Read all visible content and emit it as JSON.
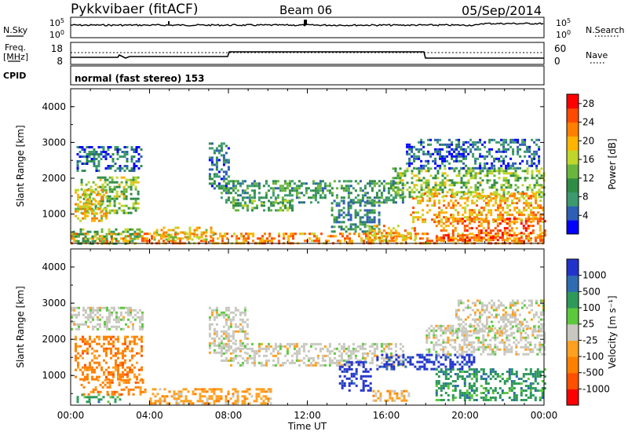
{
  "header": {
    "title": "Pykkvibaer (fitACF)",
    "beam": "Beam 06",
    "date": "05/Sep/2014"
  },
  "params": {
    "nsky_label": "N.Sky",
    "nsearch_label": "N.Search",
    "freq_label_1": "Freq.",
    "freq_label_2": "[MHz]",
    "nave_label": "Nave",
    "cpid_label": "CPID",
    "cpid_text": "normal (fast stereo) 153",
    "noise_ticks_left": [
      "10^5",
      "10^0"
    ],
    "noise_ticks_right": [
      "10^5",
      "10^0"
    ],
    "freq_ticks_left": [
      "18",
      "8"
    ],
    "nave_ticks_right": [
      "60",
      "0"
    ]
  },
  "chart_data": [
    {
      "type": "heatmap",
      "panel": "power",
      "xlabel": "",
      "ylabel": "Slant Range [km]",
      "xlim": [
        0,
        24
      ],
      "ylim": [
        180,
        4500
      ],
      "yticks": [
        "1000",
        "2000",
        "3000",
        "4000"
      ],
      "colorbar": {
        "label": "Power [dB]",
        "ticks": [
          "4",
          "8",
          "12",
          "16",
          "20",
          "24",
          "28"
        ],
        "range": [
          0,
          30
        ],
        "colors": [
          "#0000ff",
          "#2d5fb4",
          "#3c9a6e",
          "#2f8c44",
          "#6ab63c",
          "#bfd62a",
          "#ffb400",
          "#ff8000",
          "#ff4a00",
          "#ff0000"
        ]
      },
      "echo_regions": [
        {
          "x": [
            0.0,
            24.0
          ],
          "y": [
            180,
            480
          ],
          "level": 22
        },
        {
          "x": [
            0.1,
            3.6
          ],
          "y": [
            200,
            600
          ],
          "level": 12
        },
        {
          "x": [
            0.5,
            3.4
          ],
          "y": [
            1050,
            2050
          ],
          "level": 14
        },
        {
          "x": [
            0.2,
            1.8
          ],
          "y": [
            800,
            1700
          ],
          "level": 18
        },
        {
          "x": [
            0.3,
            3.6
          ],
          "y": [
            2200,
            2900
          ],
          "level": 6
        },
        {
          "x": [
            4.2,
            7.3
          ],
          "y": [
            300,
            650
          ],
          "level": 18
        },
        {
          "x": [
            7.0,
            8.0
          ],
          "y": [
            1700,
            3000
          ],
          "level": 7
        },
        {
          "x": [
            7.6,
            16.8
          ],
          "y": [
            1350,
            1950
          ],
          "level": 10
        },
        {
          "x": [
            8.2,
            11.2
          ],
          "y": [
            1100,
            1400
          ],
          "level": 12
        },
        {
          "x": [
            13.2,
            15.6
          ],
          "y": [
            500,
            1400
          ],
          "level": 8
        },
        {
          "x": [
            15.0,
            17.4
          ],
          "y": [
            300,
            700
          ],
          "level": 20
        },
        {
          "x": [
            16.3,
            24.0
          ],
          "y": [
            1500,
            2300
          ],
          "level": 14
        },
        {
          "x": [
            17.2,
            24.0
          ],
          "y": [
            800,
            1600
          ],
          "level": 20
        },
        {
          "x": [
            18.5,
            24.0
          ],
          "y": [
            250,
            900
          ],
          "level": 24
        },
        {
          "x": [
            17.0,
            23.8
          ],
          "y": [
            2300,
            3100
          ],
          "level": 5
        }
      ]
    },
    {
      "type": "heatmap",
      "panel": "velocity",
      "xlabel": "Time UT",
      "ylabel": "Slant Range [km]",
      "xlim": [
        0,
        24
      ],
      "ylim": [
        180,
        4500
      ],
      "xticks": [
        "00:00",
        "04:00",
        "08:00",
        "12:00",
        "16:00",
        "20:00",
        "00:00"
      ],
      "yticks": [
        "1000",
        "2000",
        "3000",
        "4000"
      ],
      "colorbar": {
        "label": "Velocity [m s⁻¹]",
        "ticks": [
          "1000",
          "500",
          "100",
          "25",
          "-25",
          "-100",
          "-500",
          "-1000"
        ],
        "colors": [
          "#2233cc",
          "#2f6bb0",
          "#2e9a5a",
          "#5cc83c",
          "#c8c8c0",
          "#ffa020",
          "#ff8000",
          "#ff5000",
          "#ff0000"
        ]
      },
      "echo_regions": [
        {
          "x": [
            0.0,
            3.6
          ],
          "y": [
            2300,
            2900
          ],
          "vclass": "-25..25"
        },
        {
          "x": [
            0.2,
            3.6
          ],
          "y": [
            900,
            2100
          ],
          "vclass": "-500..-100"
        },
        {
          "x": [
            0.3,
            2.5
          ],
          "y": [
            250,
            500
          ],
          "vclass": "100..500"
        },
        {
          "x": [
            0.5,
            3.8
          ],
          "y": [
            500,
            900
          ],
          "vclass": "-500..-100"
        },
        {
          "x": [
            4.0,
            10.2
          ],
          "y": [
            250,
            650
          ],
          "vclass": "-100..-25"
        },
        {
          "x": [
            7.0,
            9.0
          ],
          "y": [
            1600,
            2900
          ],
          "vclass": "-25..25"
        },
        {
          "x": [
            7.6,
            16.8
          ],
          "y": [
            1300,
            1900
          ],
          "vclass": "-25..25"
        },
        {
          "x": [
            13.6,
            15.2
          ],
          "y": [
            600,
            1400
          ],
          "vclass": "500..1000"
        },
        {
          "x": [
            15.3,
            17.2
          ],
          "y": [
            300,
            600
          ],
          "vclass": "-100..-25"
        },
        {
          "x": [
            15.5,
            20.5
          ],
          "y": [
            1200,
            1600
          ],
          "vclass": "500..1000"
        },
        {
          "x": [
            18.0,
            24.0
          ],
          "y": [
            1600,
            2400
          ],
          "vclass": "-25..25"
        },
        {
          "x": [
            18.5,
            24.0
          ],
          "y": [
            300,
            1200
          ],
          "vclass": "100..500"
        },
        {
          "x": [
            19.5,
            24.0
          ],
          "y": [
            2200,
            3100
          ],
          "vclass": "-25..25"
        }
      ]
    }
  ]
}
